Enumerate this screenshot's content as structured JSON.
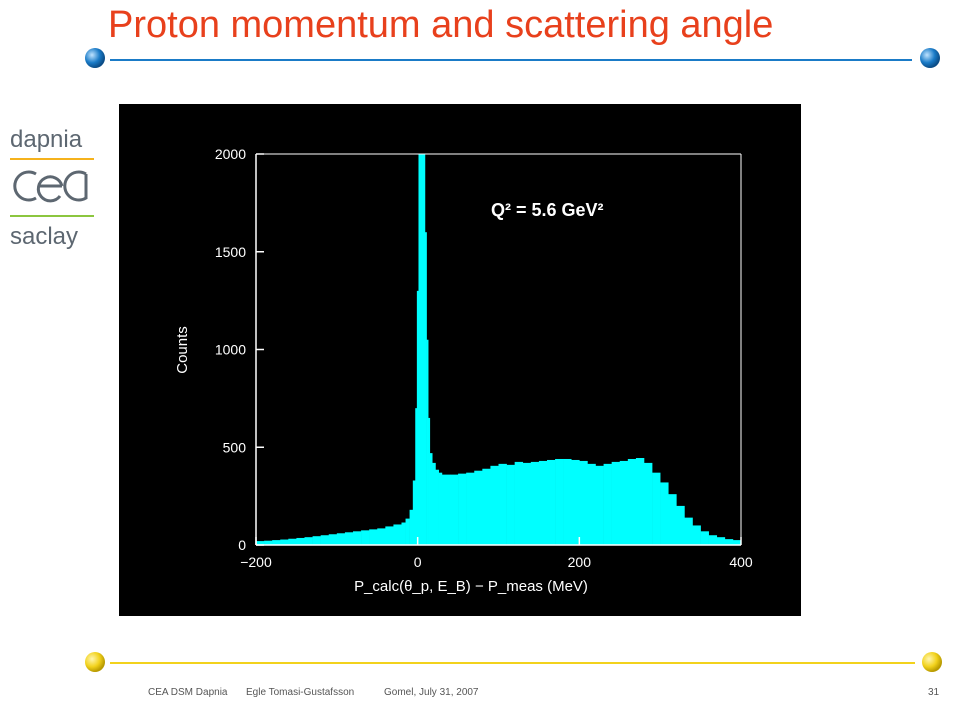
{
  "slide": {
    "title": "Proton momentum and scattering angle",
    "logo": {
      "top": "dapnia",
      "mark": "cea",
      "bottom": "saclay"
    },
    "footer": {
      "org": "CEA DSM Dapnia",
      "author": "Egle Tomasi-Gustafsson",
      "event": "Gomel, July 31, 2007",
      "page": "31"
    },
    "colors": {
      "title": "#e8401c",
      "rule_top": "#1a7bc7",
      "rule_bottom": "#f2d21c",
      "logo_top_line": "#f5b21c",
      "logo_bottom_line": "#8cc63f",
      "plot_bg": "#000000",
      "histogram": "#00ffff",
      "axis_text": "#ffffff"
    }
  },
  "chart_data": {
    "type": "bar",
    "title": "",
    "annotation": "Q² = 5.6 GeV²",
    "xlabel": "P_calc(θ_p, E_B) − P_meas (MeV)",
    "ylabel": "Counts",
    "xlim": [
      -200,
      400
    ],
    "ylim": [
      0,
      2000
    ],
    "xticks": [
      "−200",
      "0",
      "200",
      "400"
    ],
    "yticks": [
      "0",
      "500",
      "1000",
      "1500",
      "2000"
    ],
    "grid": false,
    "legend": "none",
    "bins": [
      {
        "x": -200,
        "y": 20
      },
      {
        "x": -190,
        "y": 22
      },
      {
        "x": -180,
        "y": 25
      },
      {
        "x": -170,
        "y": 28
      },
      {
        "x": -160,
        "y": 32
      },
      {
        "x": -150,
        "y": 36
      },
      {
        "x": -140,
        "y": 40
      },
      {
        "x": -130,
        "y": 45
      },
      {
        "x": -120,
        "y": 50
      },
      {
        "x": -110,
        "y": 55
      },
      {
        "x": -100,
        "y": 60
      },
      {
        "x": -90,
        "y": 65
      },
      {
        "x": -80,
        "y": 70
      },
      {
        "x": -70,
        "y": 75
      },
      {
        "x": -60,
        "y": 80
      },
      {
        "x": -50,
        "y": 85
      },
      {
        "x": -40,
        "y": 95
      },
      {
        "x": -30,
        "y": 105
      },
      {
        "x": -20,
        "y": 115
      },
      {
        "x": -15,
        "y": 135
      },
      {
        "x": -10,
        "y": 180
      },
      {
        "x": -6,
        "y": 330
      },
      {
        "x": -3,
        "y": 700
      },
      {
        "x": -1,
        "y": 1300
      },
      {
        "x": 1,
        "y": 2000
      },
      {
        "x": 4,
        "y": 2000
      },
      {
        "x": 7,
        "y": 2000
      },
      {
        "x": 9,
        "y": 1600
      },
      {
        "x": 11,
        "y": 1050
      },
      {
        "x": 13,
        "y": 650
      },
      {
        "x": 15,
        "y": 470
      },
      {
        "x": 18,
        "y": 420
      },
      {
        "x": 22,
        "y": 385
      },
      {
        "x": 26,
        "y": 370
      },
      {
        "x": 30,
        "y": 360
      },
      {
        "x": 40,
        "y": 360
      },
      {
        "x": 50,
        "y": 365
      },
      {
        "x": 60,
        "y": 370
      },
      {
        "x": 70,
        "y": 380
      },
      {
        "x": 80,
        "y": 390
      },
      {
        "x": 90,
        "y": 405
      },
      {
        "x": 100,
        "y": 415
      },
      {
        "x": 110,
        "y": 410
      },
      {
        "x": 120,
        "y": 425
      },
      {
        "x": 130,
        "y": 420
      },
      {
        "x": 140,
        "y": 425
      },
      {
        "x": 150,
        "y": 430
      },
      {
        "x": 160,
        "y": 435
      },
      {
        "x": 170,
        "y": 440
      },
      {
        "x": 180,
        "y": 440
      },
      {
        "x": 190,
        "y": 435
      },
      {
        "x": 200,
        "y": 430
      },
      {
        "x": 210,
        "y": 415
      },
      {
        "x": 220,
        "y": 405
      },
      {
        "x": 230,
        "y": 415
      },
      {
        "x": 240,
        "y": 425
      },
      {
        "x": 250,
        "y": 430
      },
      {
        "x": 260,
        "y": 440
      },
      {
        "x": 270,
        "y": 445
      },
      {
        "x": 280,
        "y": 420
      },
      {
        "x": 290,
        "y": 370
      },
      {
        "x": 300,
        "y": 320
      },
      {
        "x": 310,
        "y": 260
      },
      {
        "x": 320,
        "y": 200
      },
      {
        "x": 330,
        "y": 140
      },
      {
        "x": 340,
        "y": 100
      },
      {
        "x": 350,
        "y": 70
      },
      {
        "x": 360,
        "y": 50
      },
      {
        "x": 370,
        "y": 40
      },
      {
        "x": 380,
        "y": 30
      },
      {
        "x": 390,
        "y": 25
      }
    ],
    "series": [
      {
        "color": "#00ffff"
      }
    ]
  }
}
